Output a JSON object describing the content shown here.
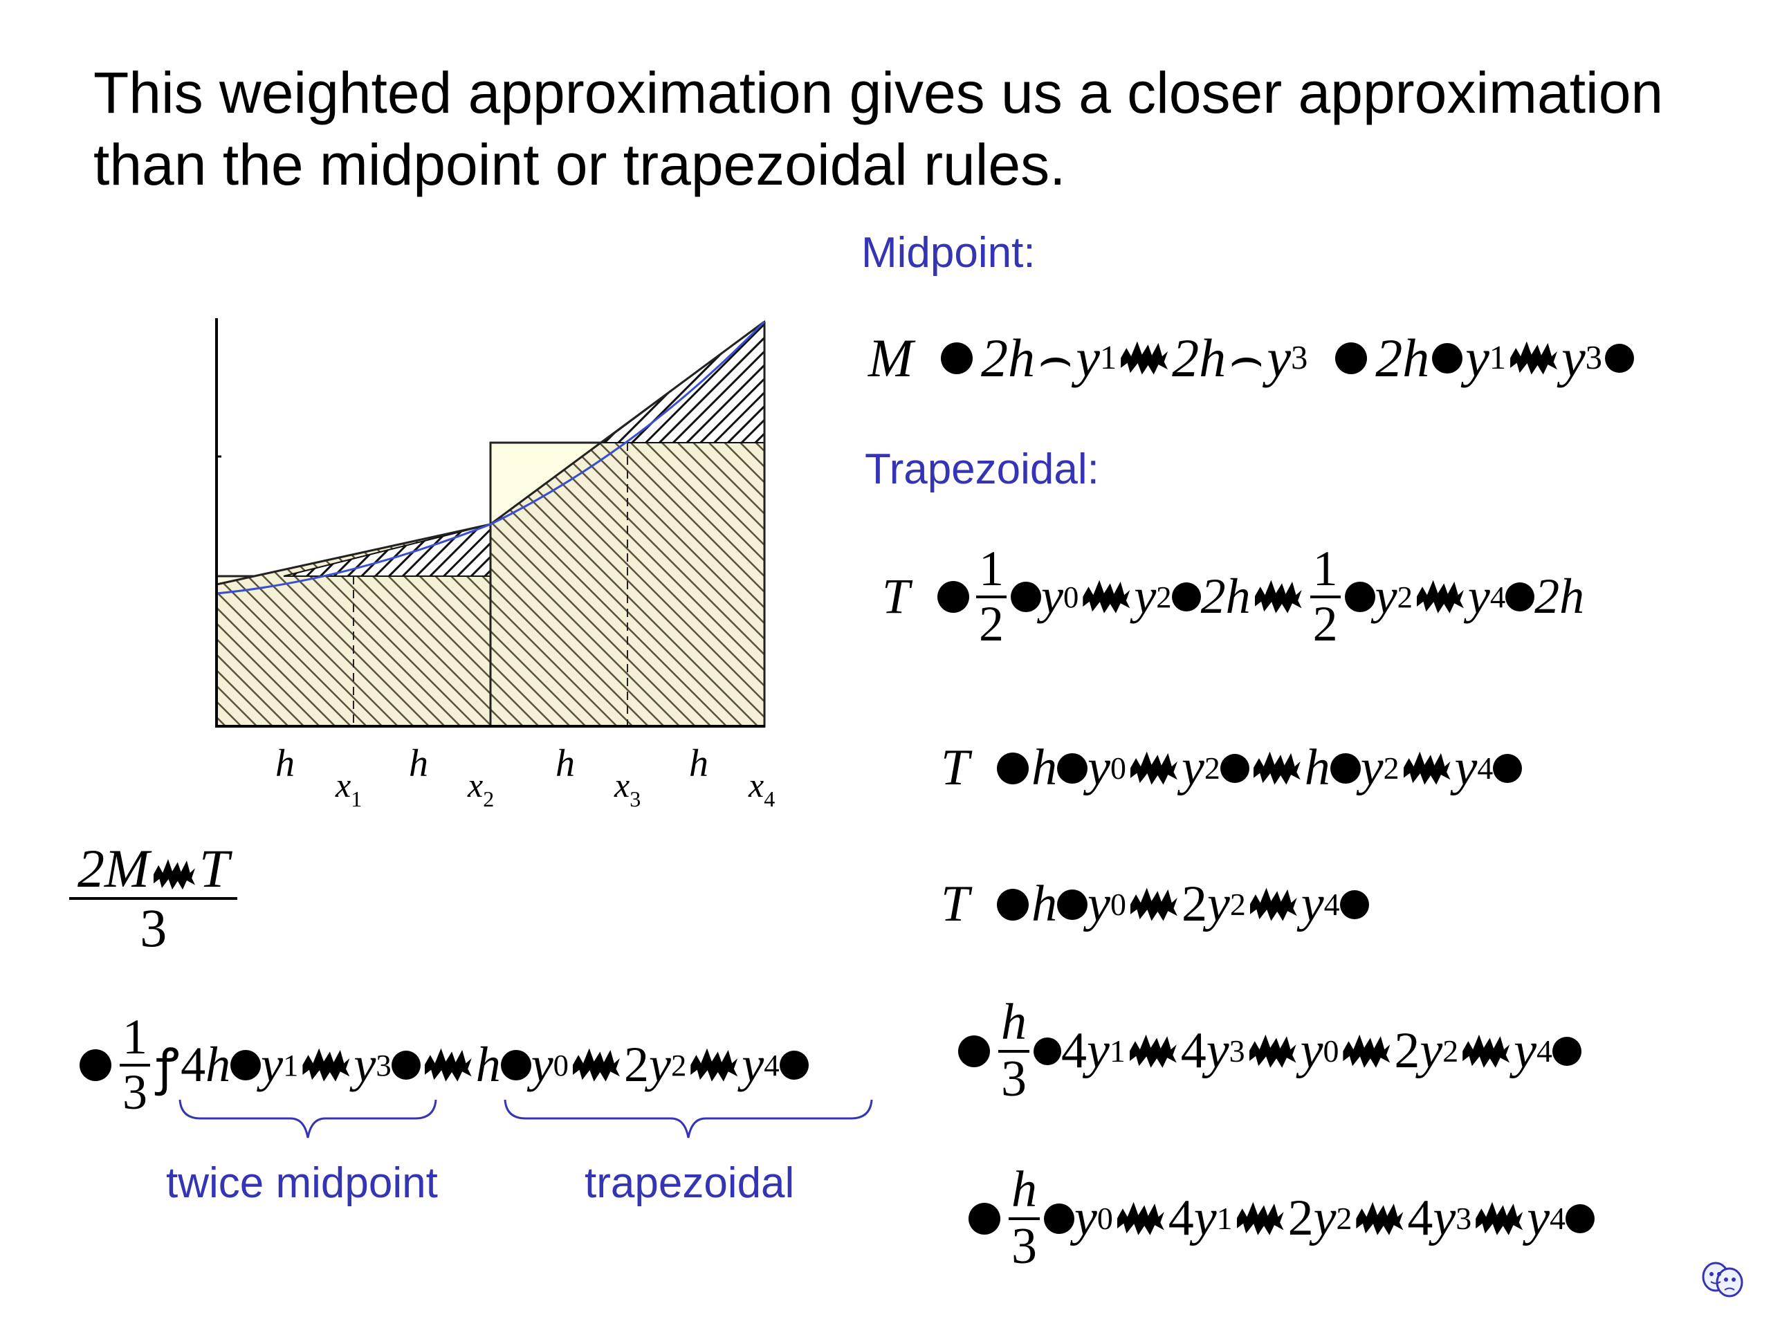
{
  "slide": {
    "title_line1": "This weighted approximation gives us a closer approximation",
    "title_line2": "than the midpoint or trapezoidal rules."
  },
  "labels": {
    "midpoint": "Midpoint:",
    "trapezoidal": "Trapezoidal:",
    "twice_midpoint": "twice midpoint",
    "trapezoidal_brace": "trapezoidal"
  },
  "graph": {
    "interval_labels": [
      "h",
      "h",
      "h",
      "h"
    ],
    "x_labels": [
      {
        "base": "x",
        "sub": "1"
      },
      {
        "base": "x",
        "sub": "2"
      },
      {
        "base": "x",
        "sub": "3"
      },
      {
        "base": "x",
        "sub": "4"
      }
    ]
  },
  "equations": {
    "M": "M",
    "T": "T",
    "two_h": "2h",
    "h": "h",
    "y": "y",
    "one": "1",
    "two": "2",
    "three": "3",
    "four": "4",
    "twoM": "2M",
    "subs": {
      "s0": "0",
      "s1": "1",
      "s2": "2",
      "s3": "3",
      "s4": "4"
    }
  },
  "colors": {
    "accent_text": "#3434b4",
    "curve": "#3a4fd0",
    "shade_fill": "#fdfbe2",
    "hatch": "#4a4030"
  },
  "icons": {
    "corner": "theater-masks-icon"
  }
}
